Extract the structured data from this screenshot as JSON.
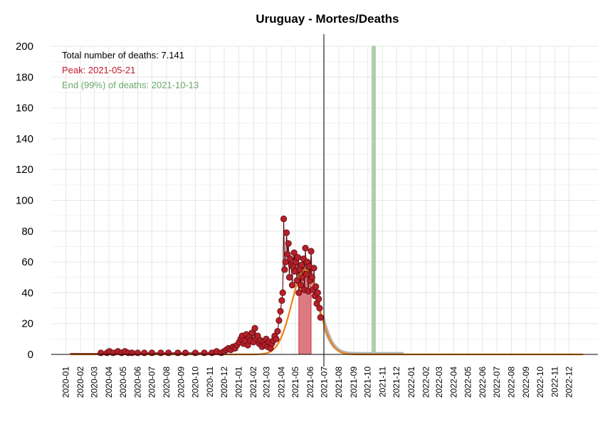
{
  "chart_data": {
    "type": "line",
    "title": "Uruguay - Mortes/Deaths",
    "xlabel": "",
    "ylabel": "",
    "ylim": [
      0,
      200
    ],
    "y_ticks": [
      "0",
      "20",
      "40",
      "60",
      "80",
      "100",
      "120",
      "140",
      "160",
      "180",
      "200"
    ],
    "x_range": [
      "2019-12-01",
      "2023-01-31"
    ],
    "x_ticks": [
      "2020-01",
      "2020-02",
      "2020-03",
      "2020-04",
      "2020-05",
      "2020-06",
      "2020-07",
      "2020-08",
      "2020-09",
      "2020-10",
      "2020-11",
      "2020-12",
      "2021-01",
      "2021-02",
      "2021-03",
      "2021-04",
      "2021-05",
      "2021-06",
      "2021-07",
      "2021-08",
      "2021-09",
      "2021-10",
      "2021-11",
      "2021-12",
      "2022-01",
      "2022-02",
      "2022-03",
      "2022-04",
      "2022-05",
      "2022-06",
      "2022-07",
      "2022-08",
      "2022-09",
      "2022-10",
      "2022-11",
      "2022-12"
    ],
    "grid": true,
    "annotations": {
      "total": "Total number of deaths: 7.141",
      "peak": "Peak: 2021-05-21",
      "end": "End (99%) of deaths: 2021-10-13"
    },
    "current_date": "2021-06-30",
    "peak_band": {
      "start": "2021-05-08",
      "end": "2021-06-03",
      "height": 55
    },
    "end_band": {
      "start": "2021-10-10",
      "end": "2021-10-17"
    },
    "model_curve": {
      "name": "",
      "peak_date": "2021-05-21",
      "peak_value": 55,
      "sd_days": 28,
      "start": "2020-01-10",
      "end": "2022-12-31"
    },
    "forecast_band": {
      "start": "2021-06-30",
      "end": "2021-12-15"
    },
    "observed_points": [
      [
        "2020-03-15",
        1
      ],
      [
        "2020-03-28",
        1
      ],
      [
        "2020-04-02",
        2
      ],
      [
        "2020-04-10",
        1
      ],
      [
        "2020-04-20",
        2
      ],
      [
        "2020-04-28",
        1
      ],
      [
        "2020-05-05",
        2
      ],
      [
        "2020-05-12",
        1
      ],
      [
        "2020-05-20",
        1
      ],
      [
        "2020-06-01",
        1
      ],
      [
        "2020-06-15",
        1
      ],
      [
        "2020-07-01",
        1
      ],
      [
        "2020-07-20",
        1
      ],
      [
        "2020-08-05",
        1
      ],
      [
        "2020-08-25",
        1
      ],
      [
        "2020-09-10",
        1
      ],
      [
        "2020-10-01",
        1
      ],
      [
        "2020-10-20",
        1
      ],
      [
        "2020-11-05",
        1
      ],
      [
        "2020-11-15",
        2
      ],
      [
        "2020-11-25",
        1
      ],
      [
        "2020-12-01",
        2
      ],
      [
        "2020-12-06",
        3
      ],
      [
        "2020-12-10",
        4
      ],
      [
        "2020-12-15",
        3
      ],
      [
        "2020-12-20",
        5
      ],
      [
        "2020-12-24",
        4
      ],
      [
        "2020-12-28",
        6
      ],
      [
        "2021-01-02",
        8
      ],
      [
        "2021-01-05",
        10
      ],
      [
        "2021-01-08",
        12
      ],
      [
        "2021-01-11",
        7
      ],
      [
        "2021-01-14",
        9
      ],
      [
        "2021-01-17",
        13
      ],
      [
        "2021-01-20",
        6
      ],
      [
        "2021-01-23",
        11
      ],
      [
        "2021-01-26",
        9
      ],
      [
        "2021-01-29",
        14
      ],
      [
        "2021-02-01",
        8
      ],
      [
        "2021-02-04",
        17
      ],
      [
        "2021-02-07",
        10
      ],
      [
        "2021-02-10",
        12
      ],
      [
        "2021-02-13",
        7
      ],
      [
        "2021-02-16",
        9
      ],
      [
        "2021-02-19",
        5
      ],
      [
        "2021-02-22",
        8
      ],
      [
        "2021-02-25",
        6
      ],
      [
        "2021-02-28",
        10
      ],
      [
        "2021-03-03",
        5
      ],
      [
        "2021-03-06",
        8
      ],
      [
        "2021-03-09",
        4
      ],
      [
        "2021-03-12",
        7
      ],
      [
        "2021-03-15",
        9
      ],
      [
        "2021-03-18",
        12
      ],
      [
        "2021-03-21",
        10
      ],
      [
        "2021-03-24",
        15
      ],
      [
        "2021-03-27",
        22
      ],
      [
        "2021-03-30",
        28
      ],
      [
        "2021-04-02",
        35
      ],
      [
        "2021-04-04",
        40
      ],
      [
        "2021-04-06",
        88
      ],
      [
        "2021-04-08",
        55
      ],
      [
        "2021-04-10",
        60
      ],
      [
        "2021-04-12",
        79
      ],
      [
        "2021-04-14",
        65
      ],
      [
        "2021-04-16",
        72
      ],
      [
        "2021-04-18",
        50
      ],
      [
        "2021-04-20",
        62
      ],
      [
        "2021-04-22",
        58
      ],
      [
        "2021-04-24",
        45
      ],
      [
        "2021-04-26",
        57
      ],
      [
        "2021-04-28",
        66
      ],
      [
        "2021-04-30",
        54
      ],
      [
        "2021-05-02",
        60
      ],
      [
        "2021-05-04",
        48
      ],
      [
        "2021-05-06",
        63
      ],
      [
        "2021-05-08",
        40
      ],
      [
        "2021-05-10",
        55
      ],
      [
        "2021-05-12",
        45
      ],
      [
        "2021-05-14",
        58
      ],
      [
        "2021-05-16",
        50
      ],
      [
        "2021-05-18",
        62
      ],
      [
        "2021-05-20",
        42
      ],
      [
        "2021-05-22",
        69
      ],
      [
        "2021-05-24",
        52
      ],
      [
        "2021-05-26",
        60
      ],
      [
        "2021-05-28",
        41
      ],
      [
        "2021-05-30",
        57
      ],
      [
        "2021-06-01",
        48
      ],
      [
        "2021-06-03",
        67
      ],
      [
        "2021-06-05",
        50
      ],
      [
        "2021-06-07",
        42
      ],
      [
        "2021-06-09",
        56
      ],
      [
        "2021-06-11",
        38
      ],
      [
        "2021-06-13",
        44
      ],
      [
        "2021-06-15",
        33
      ],
      [
        "2021-06-17",
        40
      ],
      [
        "2021-06-19",
        36
      ],
      [
        "2021-06-21",
        30
      ],
      [
        "2021-06-23",
        24
      ]
    ],
    "colors": {
      "points": "#b5202a",
      "points_edge": "#5a0a0e",
      "model_line": "#f07f14",
      "forecast_band": "#b3b3b3",
      "peak_band": "#d96b73",
      "end_band": "#acd3a8",
      "peak_text": "#c0182a",
      "end_text": "#6aa86a",
      "grid": "#e6e6e6"
    }
  }
}
